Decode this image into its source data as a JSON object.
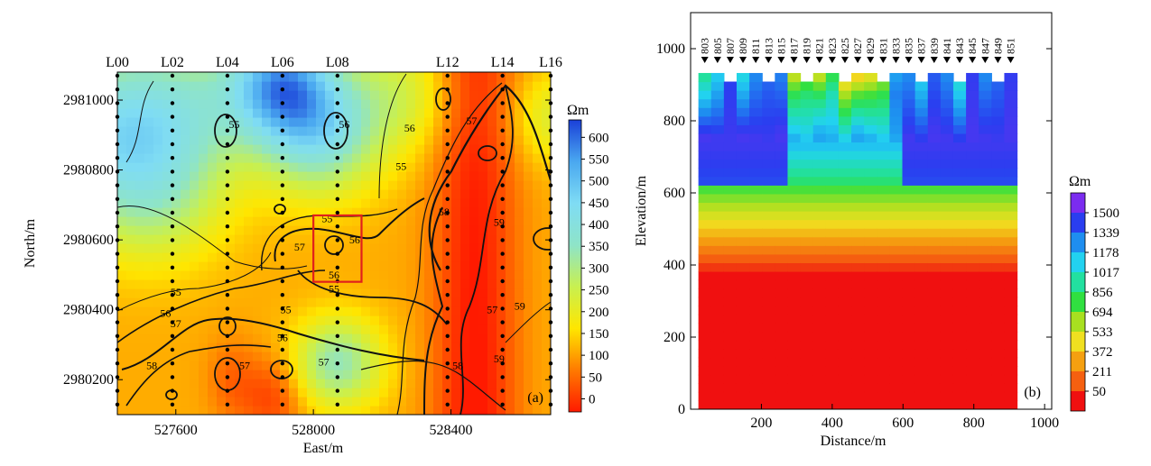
{
  "chart_data": [
    {
      "panel": "a",
      "type": "heatmap",
      "panel_label": "(a)",
      "xlabel": "East/m",
      "ylabel": "North/m",
      "x_ticks": [
        527600,
        528000,
        528400
      ],
      "y_ticks": [
        2980200,
        2980400,
        2980600,
        2980800,
        2981000
      ],
      "xlim": [
        527430,
        528690
      ],
      "ylim": [
        2980100,
        2981080
      ],
      "survey_lines": [
        {
          "label": "L00",
          "x": 527430
        },
        {
          "label": "L02",
          "x": 527590
        },
        {
          "label": "L04",
          "x": 527750
        },
        {
          "label": "L06",
          "x": 527910
        },
        {
          "label": "L08",
          "x": 528070
        },
        {
          "label": "L12",
          "x": 528390
        },
        {
          "label": "L14",
          "x": 528550
        },
        {
          "label": "L16",
          "x": 528690
        }
      ],
      "colorbar": {
        "unit": "Ωm",
        "ticks": [
          0,
          50,
          100,
          150,
          200,
          250,
          300,
          350,
          400,
          450,
          500,
          550,
          600
        ],
        "range": [
          -30,
          640
        ],
        "colors": [
          "#ff1a00",
          "#ff7a00",
          "#ffe600",
          "#c8f050",
          "#8ee4c8",
          "#7fdcf4",
          "#4aa8f0",
          "#1a40d8"
        ]
      },
      "contour_labels": [
        {
          "text": "55",
          "x": 527770,
          "y": 2980920
        },
        {
          "text": "56",
          "x": 528090,
          "y": 2980920
        },
        {
          "text": "55",
          "x": 528255,
          "y": 2980800
        },
        {
          "text": "56",
          "x": 528280,
          "y": 2980910
        },
        {
          "text": "57",
          "x": 528460,
          "y": 2980930
        },
        {
          "text": "58",
          "x": 528380,
          "y": 2980670
        },
        {
          "text": "59",
          "x": 528540,
          "y": 2980640
        },
        {
          "text": "55",
          "x": 528040,
          "y": 2980650
        },
        {
          "text": "56",
          "x": 528120,
          "y": 2980590
        },
        {
          "text": "57",
          "x": 527960,
          "y": 2980570
        },
        {
          "text": "56",
          "x": 528060,
          "y": 2980490
        },
        {
          "text": "55",
          "x": 528060,
          "y": 2980450
        },
        {
          "text": "55",
          "x": 527600,
          "y": 2980440
        },
        {
          "text": "56",
          "x": 527570,
          "y": 2980380
        },
        {
          "text": "57",
          "x": 527600,
          "y": 2980350
        },
        {
          "text": "55",
          "x": 527920,
          "y": 2980390
        },
        {
          "text": "56",
          "x": 527910,
          "y": 2980310
        },
        {
          "text": "58",
          "x": 527530,
          "y": 2980230
        },
        {
          "text": "57",
          "x": 527800,
          "y": 2980230
        },
        {
          "text": "57",
          "x": 528030,
          "y": 2980240
        },
        {
          "text": "57",
          "x": 528520,
          "y": 2980390
        },
        {
          "text": "59",
          "x": 528600,
          "y": 2980400
        },
        {
          "text": "58",
          "x": 528420,
          "y": 2980230
        },
        {
          "text": "59",
          "x": 528540,
          "y": 2980250
        }
      ],
      "highlight_box": {
        "x_range": [
          528000,
          528140
        ],
        "y_range": [
          2980480,
          2980670
        ],
        "color": "#e0201c"
      }
    },
    {
      "panel": "b",
      "type": "heatmap",
      "panel_label": "(b)",
      "xlabel": "Distance/m",
      "ylabel": "Elevation/m",
      "x_ticks": [
        200,
        400,
        600,
        800,
        1000
      ],
      "y_ticks": [
        0,
        200,
        400,
        600,
        800,
        1000
      ],
      "xlim": [
        0,
        1020
      ],
      "ylim": [
        0,
        1100
      ],
      "stations": [
        {
          "label": "803",
          "x": 40
        },
        {
          "label": "805",
          "x": 76
        },
        {
          "label": "807",
          "x": 112
        },
        {
          "label": "809",
          "x": 148
        },
        {
          "label": "811",
          "x": 184
        },
        {
          "label": "813",
          "x": 220
        },
        {
          "label": "815",
          "x": 256
        },
        {
          "label": "817",
          "x": 292
        },
        {
          "label": "819",
          "x": 328
        },
        {
          "label": "821",
          "x": 364
        },
        {
          "label": "823",
          "x": 400
        },
        {
          "label": "825",
          "x": 436
        },
        {
          "label": "827",
          "x": 472
        },
        {
          "label": "829",
          "x": 508
        },
        {
          "label": "831",
          "x": 544
        },
        {
          "label": "833",
          "x": 580
        },
        {
          "label": "835",
          "x": 616
        },
        {
          "label": "837",
          "x": 652
        },
        {
          "label": "839",
          "x": 688
        },
        {
          "label": "841",
          "x": 724
        },
        {
          "label": "843",
          "x": 760
        },
        {
          "label": "845",
          "x": 796
        },
        {
          "label": "847",
          "x": 832
        },
        {
          "label": "849",
          "x": 868
        },
        {
          "label": "851",
          "x": 904
        }
      ],
      "colorbar": {
        "unit": "Ωm",
        "ticks": [
          1500,
          1339,
          1178,
          1017,
          856,
          694,
          533,
          372,
          211,
          50
        ],
        "colors": [
          "#7b2cf0",
          "#2a3ef0",
          "#1e8ef0",
          "#22d2f0",
          "#22e0a0",
          "#30e040",
          "#a8e020",
          "#f0e020",
          "#f5a010",
          "#f56010",
          "#f01010"
        ]
      }
    }
  ]
}
